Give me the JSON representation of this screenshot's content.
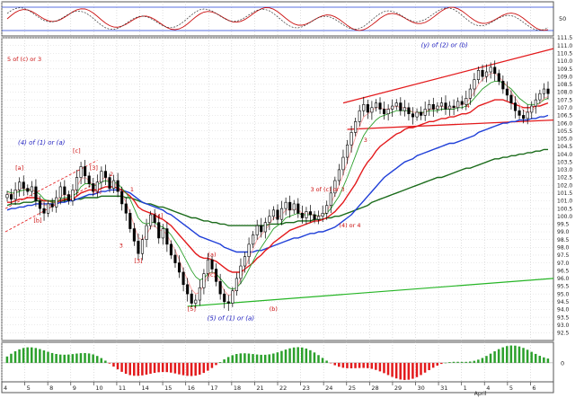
{
  "chart_data": {
    "type": "candlestick",
    "title": "",
    "xlabel": "",
    "ylabel": "",
    "grid": true,
    "colors": {
      "up": "#ffffff",
      "down": "#000000",
      "ema_fast": "#ff9f9f",
      "ema_mid": "#2ca02c",
      "ema_slow1": "#e31a1c",
      "ema_slow2": "#1f3fd8",
      "ema_slow3": "#1a6b1a",
      "channel": "#e31a1c",
      "trend_support": "#26b526",
      "wave_blue": "#1f1fbf",
      "wave_red": "#cc1010",
      "osc_pos": "#2ca02c",
      "osc_neg": "#e31a1c",
      "rsi": "#cc1010"
    },
    "price_axis": {
      "ylim": [
        92.0,
        111.5
      ],
      "ticks": [
        "111.5",
        "111.0",
        "110.5",
        "110.0",
        "109.5",
        "109.0",
        "108.5",
        "108.0",
        "107.5",
        "107.0",
        "106.5",
        "106.0",
        "105.5",
        "105.0",
        "104.5",
        "104.0",
        "103.5",
        "103.0",
        "102.5",
        "102.0",
        "101.5",
        "101.0",
        "100.5",
        "100.0",
        "99.5",
        "99.0",
        "98.5",
        "98.0",
        "97.5",
        "97.0",
        "96.5",
        "96.0",
        "95.5",
        "95.0",
        "94.5",
        "94.0",
        "93.5",
        "93.0",
        "92.5"
      ]
    },
    "x_axis": {
      "labels": [
        "4",
        "5",
        "8",
        "9",
        "10",
        "11",
        "14",
        "15",
        "16",
        "17",
        "18",
        "21",
        "22",
        "23",
        "24",
        "25",
        "28",
        "29",
        "30",
        "31",
        "1",
        "4",
        "5",
        "6"
      ],
      "month_label": "April"
    },
    "rsi_panel": {
      "ticks": [
        "50"
      ]
    },
    "osc_panel": {
      "ticks": [
        "0"
      ]
    },
    "price_series": [
      101.4,
      101.1,
      101.7,
      102.2,
      101.8,
      101.6,
      101.9,
      101.0,
      100.5,
      100.2,
      100.8,
      100.6,
      101.2,
      101.9,
      101.4,
      101.0,
      101.7,
      102.5,
      103.2,
      102.6,
      102.1,
      101.6,
      102.2,
      102.9,
      102.5,
      101.8,
      102.3,
      101.6,
      100.8,
      100.2,
      99.2,
      98.4,
      97.6,
      98.5,
      99.4,
      100.1,
      99.6,
      98.6,
      99.2,
      98.2,
      97.5,
      97.0,
      96.4,
      95.6,
      95.0,
      94.4,
      94.6,
      95.4,
      96.3,
      97.2,
      96.6,
      95.8,
      95.0,
      94.5,
      94.4,
      95.2,
      96.0,
      96.8,
      97.4,
      98.2,
      98.8,
      99.4,
      99.0,
      99.6,
      100.0,
      100.4,
      99.8,
      100.5,
      100.9,
      100.4,
      100.8,
      100.2,
      99.9,
      100.3,
      100.1,
      99.8,
      100.0,
      100.2,
      100.7,
      101.5,
      102.3,
      103.0,
      103.8,
      104.6,
      105.4,
      106.1,
      106.8,
      107.2,
      106.7,
      107.0,
      107.3,
      106.9,
      106.6,
      106.9,
      107.1,
      107.3,
      106.8,
      107.0,
      106.6,
      106.4,
      106.7,
      106.5,
      106.9,
      107.2,
      106.9,
      107.1,
      107.3,
      106.9,
      107.1,
      107.0,
      107.4,
      107.2,
      107.6,
      108.2,
      108.8,
      109.4,
      109.0,
      109.3,
      109.6,
      109.2,
      108.7,
      108.2,
      107.8,
      107.3,
      106.8,
      106.5,
      106.3,
      106.7,
      107.1,
      107.5,
      107.9,
      108.2,
      107.9
    ],
    "ema_fast_series": [
      101.5,
      101.4,
      101.5,
      101.8,
      101.8,
      101.7,
      101.8,
      101.5,
      101.1,
      100.7,
      100.7,
      100.7,
      100.9,
      101.3,
      101.4,
      101.3,
      101.4,
      101.9,
      102.4,
      102.5,
      102.3,
      102.0,
      102.1,
      102.4,
      102.5,
      102.2,
      102.2,
      101.9,
      101.4,
      100.9,
      100.2,
      99.4,
      98.6,
      98.5,
      98.8,
      99.3,
      99.4,
      99.1,
      99.1,
      98.8,
      98.3,
      97.8,
      97.2,
      96.5,
      95.9,
      95.3,
      95.0,
      95.1,
      95.6,
      96.2,
      96.4,
      96.2,
      95.7,
      95.2,
      94.9,
      95.0,
      95.4,
      96.0,
      96.6,
      97.3,
      97.9,
      98.5,
      98.8,
      99.1,
      99.5,
      99.9,
      99.9,
      100.1,
      100.4,
      100.4,
      100.5,
      100.4,
      100.2,
      100.2,
      100.2,
      100.0,
      100.0,
      100.1,
      100.3,
      100.8,
      101.4,
      102.0,
      102.7,
      103.5,
      104.3,
      105.1,
      105.8,
      106.4,
      106.6,
      106.8,
      107.0,
      107.0,
      106.9,
      106.9,
      107.0,
      107.1,
      107.0,
      107.0,
      106.9,
      106.7,
      106.7,
      106.6,
      106.7,
      106.9,
      106.9,
      107.0,
      107.1,
      107.0,
      107.0,
      107.0,
      107.1,
      107.2,
      107.3,
      107.6,
      108.0,
      108.5,
      108.8,
      109.0,
      109.2,
      109.2,
      109.0,
      108.7,
      108.4,
      108.0,
      107.6,
      107.2,
      106.8,
      106.7,
      106.8,
      107.0,
      107.3,
      107.6,
      107.7
    ],
    "ema_mid_series": [
      101.6,
      101.5,
      101.5,
      101.6,
      101.7,
      101.7,
      101.7,
      101.6,
      101.4,
      101.1,
      101.0,
      100.9,
      100.9,
      101.1,
      101.2,
      101.2,
      101.3,
      101.5,
      101.9,
      102.1,
      102.1,
      102.0,
      102.0,
      102.2,
      102.3,
      102.2,
      102.2,
      102.1,
      101.8,
      101.5,
      101.1,
      100.5,
      99.9,
      99.6,
      99.5,
      99.6,
      99.6,
      99.4,
      99.3,
      99.1,
      98.8,
      98.4,
      98.0,
      97.5,
      97.0,
      96.5,
      96.1,
      95.9,
      96.0,
      96.3,
      96.4,
      96.3,
      96.0,
      95.7,
      95.4,
      95.3,
      95.4,
      95.7,
      96.1,
      96.6,
      97.1,
      97.6,
      98.0,
      98.4,
      98.8,
      99.2,
      99.4,
      99.6,
      99.9,
      100.0,
      100.1,
      100.2,
      100.1,
      100.1,
      100.1,
      100.1,
      100.0,
      100.1,
      100.2,
      100.5,
      100.9,
      101.3,
      101.9,
      102.5,
      103.2,
      103.9,
      104.6,
      105.2,
      105.6,
      105.9,
      106.2,
      106.4,
      106.5,
      106.6,
      106.7,
      106.8,
      106.8,
      106.8,
      106.8,
      106.7,
      106.7,
      106.7,
      106.7,
      106.8,
      106.8,
      106.8,
      106.9,
      106.9,
      106.9,
      106.9,
      107.0,
      107.0,
      107.1,
      107.3,
      107.6,
      107.9,
      108.2,
      108.4,
      108.6,
      108.7,
      108.7,
      108.6,
      108.4,
      108.2,
      107.9,
      107.6,
      107.4,
      107.2,
      107.2,
      107.2,
      107.3,
      107.5,
      107.6
    ],
    "ema_slow1_series": [
      100.9,
      100.9,
      101.0,
      101.1,
      101.1,
      101.2,
      101.2,
      101.2,
      101.1,
      101.0,
      101.0,
      100.9,
      100.9,
      101.0,
      101.1,
      101.1,
      101.1,
      101.3,
      101.5,
      101.6,
      101.7,
      101.7,
      101.7,
      101.8,
      101.9,
      101.9,
      101.9,
      101.8,
      101.7,
      101.5,
      101.3,
      101.0,
      100.6,
      100.4,
      100.3,
      100.2,
      100.1,
      99.9,
      99.8,
      99.6,
      99.4,
      99.1,
      98.8,
      98.5,
      98.2,
      97.9,
      97.6,
      97.4,
      97.3,
      97.3,
      97.2,
      97.1,
      96.9,
      96.7,
      96.5,
      96.4,
      96.4,
      96.4,
      96.6,
      96.8,
      97.0,
      97.3,
      97.5,
      97.8,
      98.0,
      98.3,
      98.5,
      98.7,
      98.9,
      99.1,
      99.2,
      99.3,
      99.4,
      99.5,
      99.6,
      99.7,
      99.7,
      99.8,
      99.9,
      100.1,
      100.3,
      100.6,
      100.9,
      101.3,
      101.7,
      102.1,
      102.6,
      103.1,
      103.5,
      103.8,
      104.2,
      104.5,
      104.7,
      104.9,
      105.1,
      105.3,
      105.4,
      105.6,
      105.7,
      105.7,
      105.8,
      105.9,
      106.0,
      106.1,
      106.1,
      106.2,
      106.3,
      106.3,
      106.4,
      106.4,
      106.5,
      106.6,
      106.6,
      106.7,
      106.9,
      107.1,
      107.2,
      107.3,
      107.4,
      107.5,
      107.5,
      107.5,
      107.4,
      107.3,
      107.2,
      107.1,
      107.0,
      107.0,
      107.0,
      107.1,
      107.1,
      107.2,
      107.3
    ],
    "ema_slow2_series": [
      100.4,
      100.5,
      100.5,
      100.6,
      100.6,
      100.7,
      100.7,
      100.8,
      100.8,
      100.8,
      100.8,
      100.8,
      100.8,
      100.9,
      100.9,
      101.0,
      101.0,
      101.1,
      101.2,
      101.3,
      101.4,
      101.4,
      101.5,
      101.6,
      101.6,
      101.7,
      101.7,
      101.7,
      101.7,
      101.6,
      101.5,
      101.3,
      101.1,
      100.9,
      100.8,
      100.7,
      100.6,
      100.5,
      100.4,
      100.2,
      100.1,
      99.9,
      99.7,
      99.5,
      99.3,
      99.1,
      98.9,
      98.7,
      98.6,
      98.5,
      98.4,
      98.3,
      98.2,
      98.0,
      97.9,
      97.8,
      97.7,
      97.7,
      97.7,
      97.7,
      97.7,
      97.8,
      97.8,
      97.9,
      98.0,
      98.1,
      98.2,
      98.3,
      98.4,
      98.5,
      98.6,
      98.6,
      98.7,
      98.8,
      98.9,
      98.9,
      99.0,
      99.0,
      99.1,
      99.2,
      99.3,
      99.5,
      99.7,
      99.9,
      100.1,
      100.4,
      100.7,
      101.0,
      101.3,
      101.6,
      101.9,
      102.2,
      102.5,
      102.7,
      102.9,
      103.1,
      103.3,
      103.5,
      103.6,
      103.7,
      103.9,
      104.0,
      104.1,
      104.2,
      104.3,
      104.4,
      104.5,
      104.6,
      104.7,
      104.7,
      104.8,
      104.9,
      105.0,
      105.1,
      105.2,
      105.4,
      105.5,
      105.6,
      105.7,
      105.8,
      105.9,
      106.0,
      106.0,
      106.1,
      106.1,
      106.2,
      106.2,
      106.2,
      106.3,
      106.3,
      106.4,
      106.4,
      106.5
    ],
    "ema_slow3_series": [
      100.7,
      100.8,
      100.8,
      100.8,
      100.9,
      100.9,
      100.9,
      101.0,
      101.0,
      101.0,
      101.0,
      101.0,
      101.0,
      101.0,
      101.0,
      101.1,
      101.1,
      101.1,
      101.1,
      101.2,
      101.2,
      101.2,
      101.2,
      101.3,
      101.3,
      101.3,
      101.3,
      101.3,
      101.3,
      101.2,
      101.2,
      101.1,
      101.0,
      100.9,
      100.8,
      100.8,
      100.7,
      100.6,
      100.6,
      100.5,
      100.4,
      100.3,
      100.2,
      100.1,
      100.0,
      99.9,
      99.9,
      99.8,
      99.7,
      99.7,
      99.6,
      99.6,
      99.5,
      99.5,
      99.4,
      99.4,
      99.4,
      99.4,
      99.4,
      99.4,
      99.4,
      99.4,
      99.4,
      99.4,
      99.5,
      99.5,
      99.5,
      99.5,
      99.6,
      99.6,
      99.6,
      99.7,
      99.7,
      99.7,
      99.7,
      99.8,
      99.8,
      99.8,
      99.9,
      99.9,
      100.0,
      100.0,
      100.1,
      100.2,
      100.3,
      100.4,
      100.5,
      100.6,
      100.7,
      100.9,
      101.0,
      101.1,
      101.2,
      101.3,
      101.4,
      101.5,
      101.6,
      101.7,
      101.8,
      101.9,
      102.0,
      102.1,
      102.2,
      102.3,
      102.4,
      102.5,
      102.5,
      102.6,
      102.7,
      102.8,
      102.9,
      103.0,
      103.1,
      103.1,
      103.2,
      103.3,
      103.4,
      103.5,
      103.6,
      103.7,
      103.7,
      103.8,
      103.8,
      103.9,
      103.9,
      104.0,
      104.0,
      104.1,
      104.1,
      104.2,
      104.2,
      104.3,
      104.3
    ],
    "wave_labels_blue": [
      {
        "text": "(4) of (1) or (a)",
        "price": 104.6
      },
      {
        "text": "(5) of (1) or (a)",
        "price": 93.3
      },
      {
        "text": "(y) of (2) or (b)",
        "price": 110.9
      }
    ],
    "wave_labels_red": [
      {
        "text": "[a]",
        "price": 103.0
      },
      {
        "text": "[b]",
        "price": 99.6
      },
      {
        "text": "[c]",
        "price": 104.1
      },
      {
        "text": "[d]",
        "price": 101.5
      },
      {
        "text": "[3]",
        "price": 103.0
      },
      {
        "text": "2",
        "price": 102.6
      },
      {
        "text": "1",
        "price": 101.6
      },
      {
        "text": "3",
        "price": 98.0
      },
      {
        "text": "[4]",
        "price": 99.9
      },
      {
        "text": "[3]",
        "price": 97.0
      },
      {
        "text": "(a)",
        "price": 97.4
      },
      {
        "text": "(c)",
        "price": 96.1
      },
      {
        "text": "[5]",
        "price": 93.9
      },
      {
        "text": "(b)",
        "price": 93.9
      },
      {
        "text": "3 of (c) or 3",
        "price": 101.6
      },
      {
        "text": "(4) or 4",
        "price": 99.3
      },
      {
        "text": "3",
        "price": 104.8
      },
      {
        "text": "4",
        "price": 107.0
      },
      {
        "text": "5 of (c) or 3",
        "price": 110.0
      }
    ]
  }
}
